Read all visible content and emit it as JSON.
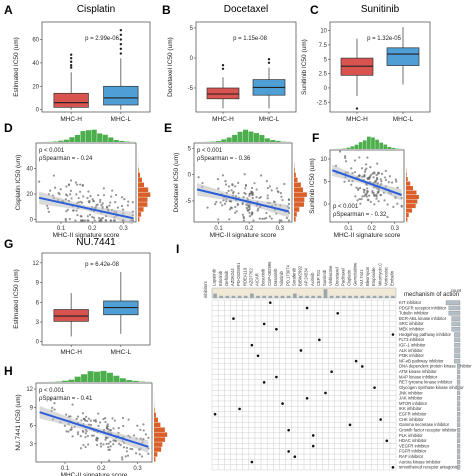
{
  "panels": {
    "A": "A",
    "B": "B",
    "C": "C",
    "D": "D",
    "E": "E",
    "F": "F",
    "G": "G",
    "H": "H",
    "I": "I"
  },
  "colors": {
    "mhc_h": "#d9534f",
    "mhc_l": "#4f9fd6",
    "hist_top": "#4cae4c",
    "hist_right": "#d9602a",
    "reg": "#2b5fd9",
    "header": "#f0e9d6"
  },
  "chart_data": [
    {
      "id": "A",
      "type": "box",
      "title": "Cisplatin",
      "ylabel": "Estimated IC50 (um)",
      "annotation": "p = 2.99e-06",
      "categories": [
        "MHC-H",
        "MHC-L"
      ],
      "ylim": [
        -2,
        75
      ],
      "yticks": [
        0,
        20,
        40,
        60
      ],
      "series": [
        {
          "name": "MHC-H",
          "q1": 2,
          "median": 6,
          "q3": 14,
          "whisker_low": 0,
          "whisker_high": 32,
          "outliers": [
            36,
            38,
            41,
            44,
            47
          ]
        },
        {
          "name": "MHC-L",
          "q1": 4,
          "median": 10,
          "q3": 20,
          "whisker_low": 0,
          "whisker_high": 44,
          "outliers": [
            48,
            52,
            56,
            60,
            64,
            68
          ]
        }
      ]
    },
    {
      "id": "B",
      "type": "box",
      "title": "Docetaxel",
      "ylabel": "Docetaxel IC50 (um)",
      "annotation": "p = 1.15e-08",
      "categories": [
        "MHC-H",
        "MHC-L"
      ],
      "ylim": [
        -9,
        6
      ],
      "yticks": [
        -5,
        0,
        5
      ],
      "series": [
        {
          "name": "MHC-H",
          "q1": -6.8,
          "median": -6.0,
          "q3": -5.0,
          "whisker_low": -8.4,
          "whisker_high": -3.2,
          "outliers": [
            -1.8,
            -1.2
          ]
        },
        {
          "name": "MHC-L",
          "q1": -6.2,
          "median": -4.9,
          "q3": -3.6,
          "whisker_low": -8.4,
          "whisker_high": -1.6,
          "outliers": [
            -0.8,
            -0.2
          ]
        }
      ]
    },
    {
      "id": "C",
      "type": "box",
      "title": "Sunitinib",
      "ylabel": "Sunitinib IC50 (um)",
      "annotation": "p = 1.32e-05",
      "categories": [
        "MHC-H",
        "MHC-L"
      ],
      "ylim": [
        -4.2,
        11.5
      ],
      "yticks": [
        -2.5,
        0,
        2.5,
        5,
        7.5,
        10
      ],
      "series": [
        {
          "name": "MHC-H",
          "q1": 2.2,
          "median": 3.8,
          "q3": 5.2,
          "whisker_low": -1.4,
          "whisker_high": 8.6,
          "outliers": [
            -3.6
          ]
        },
        {
          "name": "MHC-L",
          "q1": 3.9,
          "median": 5.9,
          "q3": 7.0,
          "whisker_low": 0.6,
          "whisker_high": 10.6,
          "outliers": []
        }
      ]
    },
    {
      "id": "D",
      "type": "scatter",
      "ylabel": "Cisplatin IC50 (um)",
      "xlabel": "MHC-II signature score",
      "annotations": [
        "p < 0.001",
        "ρSpearman = - 0.24"
      ],
      "xlim": [
        0.02,
        0.34
      ],
      "ylim": [
        -2,
        60
      ],
      "xticks": [
        0.1,
        0.2,
        0.3
      ],
      "yticks": [
        0,
        20,
        40
      ],
      "regression": {
        "x": [
          0.03,
          0.33
        ],
        "y": [
          17,
          1
        ]
      }
    },
    {
      "id": "E",
      "type": "scatter",
      "ylabel": "Docetaxel IC50 (um)",
      "xlabel": "MHC-II signature score",
      "annotations": [
        "p < 0.001",
        "ρSpearman = - 0.36"
      ],
      "xlim": [
        0.02,
        0.34
      ],
      "ylim": [
        -9,
        6
      ],
      "xticks": [
        0.1,
        0.2,
        0.3
      ],
      "yticks": [
        -5,
        0,
        5
      ],
      "regression": {
        "x": [
          0.03,
          0.33
        ],
        "y": [
          -2.8,
          -7.0
        ]
      }
    },
    {
      "id": "F",
      "type": "scatter",
      "ylabel": "Sunitinib IC50 (um)",
      "xlabel": "MHC-II signature score",
      "annotations": [
        "p < 0.001",
        "ρSpearman = - 0.32"
      ],
      "xlim": [
        0.02,
        0.34
      ],
      "ylim": [
        -4,
        12
      ],
      "xticks": [
        0.1,
        0.2,
        0.3
      ],
      "yticks": [
        0,
        5,
        10
      ],
      "regression": {
        "x": [
          0.03,
          0.33
        ],
        "y": [
          7.5,
          2.0
        ]
      }
    },
    {
      "id": "G",
      "type": "box",
      "title": "NU.7441",
      "ylabel": "Estimated IC50 (um)",
      "annotation": "p = 6.42e-08",
      "categories": [
        "MHC-H",
        "MHC-L"
      ],
      "ylim": [
        -0.5,
        13.5
      ],
      "yticks": [
        0,
        3,
        6,
        9,
        12
      ],
      "series": [
        {
          "name": "MHC-H",
          "q1": 3.1,
          "median": 3.9,
          "q3": 4.9,
          "whisker_low": 0.8,
          "whisker_high": 7.4,
          "outliers": []
        },
        {
          "name": "MHC-L",
          "q1": 4.1,
          "median": 5.2,
          "q3": 6.2,
          "whisker_low": 1.2,
          "whisker_high": 10.6,
          "outliers": []
        }
      ]
    },
    {
      "id": "H",
      "type": "scatter",
      "ylabel": "NU.7441 IC50 (um)",
      "xlabel": "MHC-II signature score",
      "annotations": [
        "p < 0.001",
        "ρSpearman = - 0.41"
      ],
      "xlim": [
        0.02,
        0.34
      ],
      "ylim": [
        0,
        13
      ],
      "xticks": [
        0.1,
        0.2,
        0.3
      ],
      "yticks": [
        3,
        6,
        9,
        12
      ],
      "regression": {
        "x": [
          0.03,
          0.33
        ],
        "y": [
          8.2,
          2.5
        ]
      }
    },
    {
      "id": "I",
      "type": "heatmap",
      "row_header": "mechanism of action",
      "col_header": "inhibitors",
      "count_header": "count",
      "columns": [
        "Lapatinib",
        "Erlotinib",
        "Gefitinib",
        "AZD6244",
        "PD-0325901",
        "RDEA119",
        "AZD7762",
        "AICAR",
        "Bosutinib",
        "CGP-082996",
        "Dasatinib",
        "Nilotinib",
        "PD.173074",
        "Sorafenib",
        "BIBW2992",
        "AP.24534",
        "Axitinib",
        "CEP.701",
        "Sunitinib",
        "Vinblastine",
        "Docetaxel",
        "Paclitaxel",
        "Cisplatin",
        "Gemcitabine",
        "NU.7441",
        "Bleomycin",
        "Etoposide",
        "Mitomycin.C",
        "Vorinostat",
        "Embelin"
      ],
      "rows": [
        "KIT inhibitor",
        "PDGFR receptor inhibitor",
        "Tubulin inhibitor",
        "BCR-ABL kinase inhibitor",
        "SRC inhibitor",
        "MEK inhibitor",
        "Hedgehog pathway inhibitor",
        "FLT3 inhibitor",
        "IGF-1 inhibitor",
        "ALK inhibitor",
        "PI3K inhibitor",
        "NF-κB pathway inhibitor",
        "DNA dependent protein kinase inhibitor",
        "ATM kinase inhibitor",
        "MAP kinase inhibitor",
        "RET tyrosine kinase inhibitor",
        "Glycogen synthase kinase inhibitor",
        "JNK inhibitor",
        "JAK inhibitor",
        "MTOR inhibitor",
        "IKK inhibitor",
        "EGFR inhibitor",
        "CHK inhibitor",
        "Gamma secretase inhibitor",
        "Growth factor receptor inhibitor",
        "PLK inhibitor",
        "HDAC inhibitor",
        "VEGFR inhibitor",
        "FGFR inhibitor",
        "RAF inhibitor",
        "Aurora kinase inhibitor",
        "smoothened receptor antagonist"
      ],
      "dots": [
        [
          0,
          9
        ],
        [
          1,
          15
        ],
        [
          2,
          20
        ],
        [
          3,
          3
        ],
        [
          4,
          8
        ],
        [
          5,
          10
        ],
        [
          6,
          29
        ],
        [
          7,
          17
        ],
        [
          8,
          6
        ],
        [
          9,
          14
        ],
        [
          10,
          7
        ],
        [
          11,
          23
        ],
        [
          12,
          24
        ],
        [
          13,
          19
        ],
        [
          14,
          10
        ],
        [
          15,
          8
        ],
        [
          16,
          26
        ],
        [
          17,
          18
        ],
        [
          18,
          15
        ],
        [
          19,
          11
        ],
        [
          20,
          4
        ],
        [
          21,
          0
        ],
        [
          22,
          27
        ],
        [
          23,
          22
        ],
        [
          24,
          12
        ],
        [
          25,
          16
        ],
        [
          26,
          28
        ],
        [
          27,
          16
        ],
        [
          28,
          12
        ],
        [
          29,
          13
        ],
        [
          30,
          6
        ],
        [
          31,
          29
        ]
      ],
      "row_counts": [
        5,
        4,
        4,
        3,
        3,
        3,
        2,
        2,
        2,
        2,
        2,
        2,
        1,
        1,
        1,
        1,
        1,
        1,
        1,
        1,
        1,
        1,
        1,
        1,
        1,
        1,
        1,
        1,
        1,
        1,
        1,
        1
      ],
      "col_counts": [
        2,
        1,
        1,
        1,
        1,
        1,
        2,
        1,
        1,
        1,
        1,
        1,
        1,
        2,
        1,
        1,
        1,
        1,
        4,
        1,
        1,
        1,
        1,
        1,
        1,
        1,
        1,
        1,
        1,
        1
      ]
    }
  ]
}
